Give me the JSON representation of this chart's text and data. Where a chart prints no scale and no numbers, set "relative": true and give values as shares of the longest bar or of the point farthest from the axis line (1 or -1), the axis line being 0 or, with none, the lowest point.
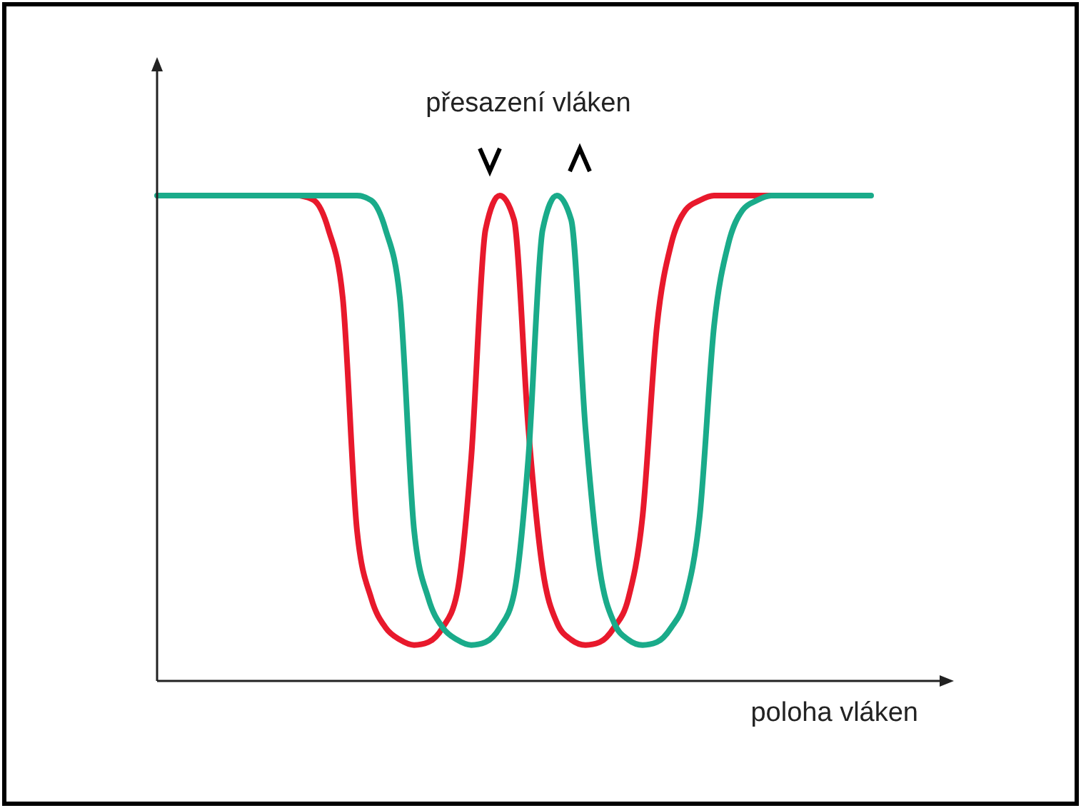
{
  "chart_data": {
    "type": "line",
    "relative": true,
    "xlabel": "poloha vláken",
    "annotations": [
      "přesazení vláken"
    ],
    "line_style": "solid",
    "categories": [
      null,
      null,
      null,
      null,
      null,
      null,
      null,
      null,
      null,
      null,
      null,
      null,
      null,
      null,
      null,
      null,
      null,
      null,
      null,
      null,
      null,
      null,
      null,
      null,
      null,
      null,
      null,
      null,
      null,
      null,
      null,
      null,
      null,
      null,
      null,
      null,
      null,
      null,
      null,
      null,
      null,
      null,
      null,
      null,
      null,
      null,
      null,
      null,
      null,
      null,
      null
    ],
    "series": [
      {
        "color": "#e8192c",
        "values": [
          null,
          null,
          null,
          null,
          null,
          null,
          null,
          null,
          null,
          null,
          1,
          0.99,
          0.93,
          0.79,
          0.31,
          0.17,
          0.11,
          0.085,
          0.074,
          0.08,
          0.11,
          0.18,
          0.46,
          0.93,
          1,
          0.95,
          0.52,
          0.23,
          0.12,
          0.085,
          0.074,
          0.08,
          0.11,
          0.17,
          0.34,
          0.73,
          0.9,
          0.97,
          0.99,
          1,
          1,
          1,
          1,
          1,
          null,
          null,
          null,
          null,
          null,
          null,
          null
        ]
      },
      {
        "color": "#1aab8a",
        "values": [
          1,
          1,
          1,
          1,
          1,
          1,
          1,
          1,
          1,
          1,
          1,
          1,
          1,
          1,
          1,
          0.99,
          0.93,
          0.79,
          0.31,
          0.17,
          0.11,
          0.085,
          0.074,
          0.08,
          0.11,
          0.18,
          0.46,
          0.93,
          1,
          0.95,
          0.52,
          0.23,
          0.12,
          0.085,
          0.074,
          0.08,
          0.11,
          0.17,
          0.34,
          0.73,
          0.9,
          0.97,
          0.99,
          1,
          1,
          1,
          1,
          1,
          1,
          1,
          1
        ]
      }
    ]
  }
}
